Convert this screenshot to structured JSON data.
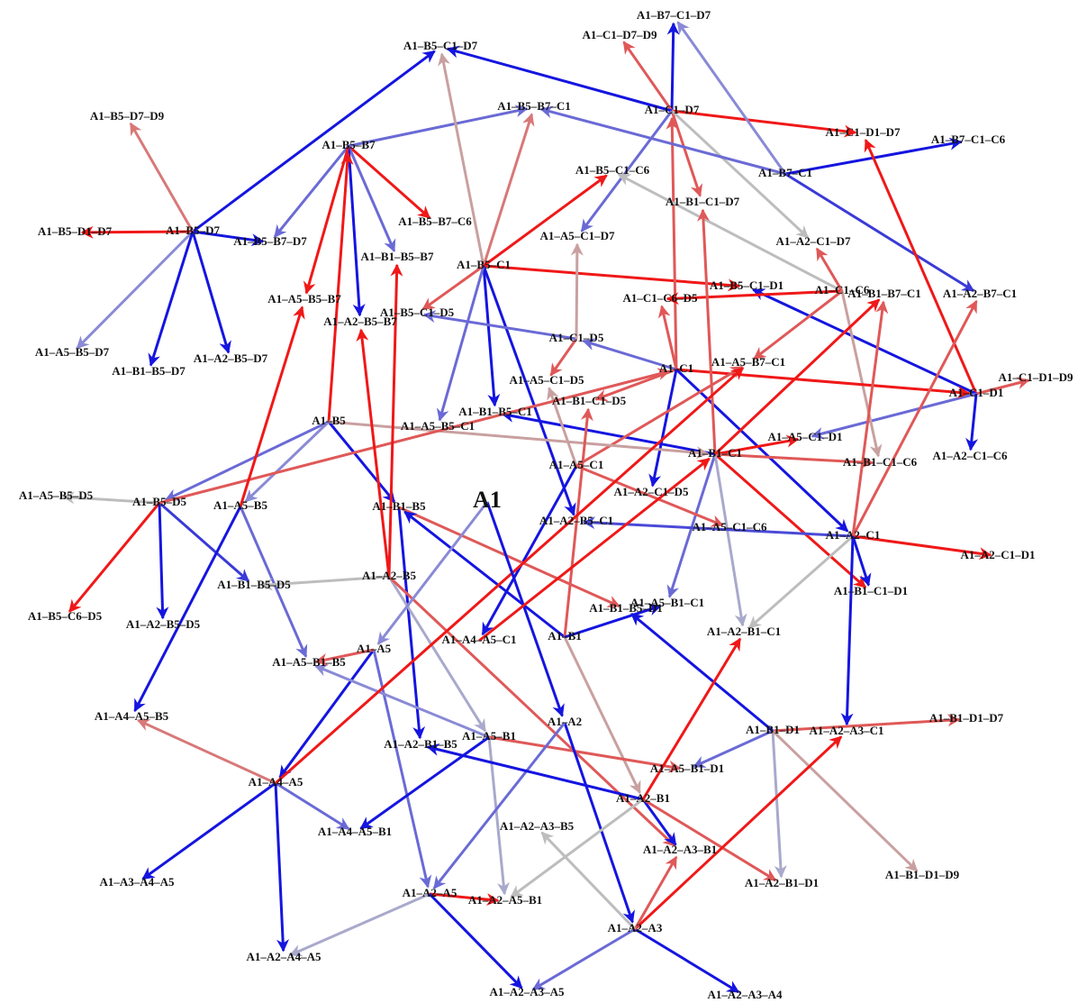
{
  "nodes": [
    "A1",
    "A1–B7–C1–D7",
    "A1–C1–D7–D9",
    "A1–B5–C1–D7",
    "A1–B5–B7–C1",
    "A1–C1–D7",
    "A1–B5–D7–D9",
    "A1–C1–D1–D7",
    "A1–B7–C1–C6",
    "A1–B5–B7",
    "A1–B7–C1",
    "A1–B5–C1–C6",
    "A1–B1–C1–D7",
    "A1–B5–B7–C6",
    "A1–B5–D1–D7",
    "A1–B5–D7",
    "A1–B5–B7–D7",
    "A1–A5–C1–D7",
    "A1–A2–C1–D7",
    "A1–B1–B5–B7",
    "A1–B5–C1",
    "A1–B5–C1–D1",
    "A1–C1–C6",
    "A1–B1–B7–C1",
    "A1–A2–B7–C1",
    "A1–A5–B5–B7",
    "A1–C1–C6–D5",
    "A1–B5–C1–D5",
    "A1–A2–B5–B7",
    "A1–C1–D5",
    "A1–A5–B5–D7",
    "A1–A2–B5–D7",
    "A1–C1",
    "A1–A5–B7–C1",
    "A1–B1–B5–D7",
    "A1–A5–C1–D5",
    "A1–C1–D1–D9",
    "A1–C1–D1",
    "A1–B1–C1–D5",
    "A1–B1–B5–C1",
    "A1–B5",
    "A1–A5–B5–C1",
    "A1–A5–C1–D1",
    "A1–B1–C1",
    "A1–B1–C1–C6",
    "A1–A2–C1–C6",
    "A1–A5–C1",
    "A1–A5–B5–D5",
    "A1–B5–D5",
    "A1–A5–B5",
    "A1–B1–B5",
    "A1–A2–C1–D5",
    "A1–A2–B5–C1",
    "A1–A5–C1–C6",
    "A1–A2–C1",
    "A1–A2–C1–D1",
    "A1–A2–B5",
    "A1–B1–B5–D5",
    "A1–B1–C1–D1",
    "A1–A5–B1–C1",
    "A1–B1–B5–D1",
    "A1–B5–C6–D5",
    "A1–A2–B5–D5",
    "A1–A2–B1–C1",
    "A1–B1",
    "A1–A4–A5–C1",
    "A1–A5",
    "A1–A5–B1–B5",
    "A1–A4–A5–B5",
    "A1–A2",
    "A1–B1–D1",
    "A1–A2–A3–C1",
    "A1–B1–D1–D7",
    "A1–A5–B1",
    "A1–A2–B1–B5",
    "A1–A5–B1–D1",
    "A1–A4–A5",
    "A1–A2–B1",
    "A1–A4–A5–B1",
    "A1–A2–A3–B5",
    "A1–A2–A3–B1",
    "A1–B1–D1–D9",
    "A1–A3–A4–A5",
    "A1–A2–B1–D1",
    "A1–A2–A5",
    "A1–A2–A5–B1",
    "A1–A2–A3",
    "A1–A2–A4–A5",
    "A1–A2–A3–A5",
    "A1–A2–A3–A4"
  ],
  "edges": [
    {
      "from": 15,
      "to": 3,
      "color": "#1515e0"
    },
    {
      "from": 15,
      "to": 14,
      "color": "#f01818"
    },
    {
      "from": 15,
      "to": 16,
      "color": "#1515e0"
    },
    {
      "from": 15,
      "to": 30,
      "color": "#8a8ad6"
    },
    {
      "from": 15,
      "to": 34,
      "color": "#1515e0"
    },
    {
      "from": 15,
      "to": 31,
      "color": "#1515e0"
    },
    {
      "from": 15,
      "to": 6,
      "color": "#d87878"
    },
    {
      "from": 9,
      "to": 16,
      "color": "#6a6ad6"
    },
    {
      "from": 9,
      "to": 13,
      "color": "#f01818"
    },
    {
      "from": 9,
      "to": 19,
      "color": "#6a6ad6"
    },
    {
      "from": 9,
      "to": 28,
      "color": "#1515e0"
    },
    {
      "from": 9,
      "to": 25,
      "color": "#f01818"
    },
    {
      "from": 9,
      "to": 4,
      "color": "#6a6ad6"
    },
    {
      "from": 40,
      "to": 9,
      "color": "#f01818"
    },
    {
      "from": 20,
      "to": 3,
      "color": "#c9a0a0"
    },
    {
      "from": 20,
      "to": 4,
      "color": "#d87878"
    },
    {
      "from": 20,
      "to": 11,
      "color": "#f01818"
    },
    {
      "from": 20,
      "to": 21,
      "color": "#f01818"
    },
    {
      "from": 20,
      "to": 27,
      "color": "#e05858"
    },
    {
      "from": 20,
      "to": 39,
      "color": "#1515e0"
    },
    {
      "from": 20,
      "to": 52,
      "color": "#1515e0"
    },
    {
      "from": 20,
      "to": 41,
      "color": "#6a6ad6"
    },
    {
      "from": 5,
      "to": 1,
      "color": "#1515e0"
    },
    {
      "from": 5,
      "to": 2,
      "color": "#e05858"
    },
    {
      "from": 5,
      "to": 3,
      "color": "#1515e0"
    },
    {
      "from": 5,
      "to": 7,
      "color": "#f01818"
    },
    {
      "from": 5,
      "to": 12,
      "color": "#e05858"
    },
    {
      "from": 5,
      "to": 17,
      "color": "#6a6ad6"
    },
    {
      "from": 5,
      "to": 18,
      "color": "#bdbdbd"
    },
    {
      "from": 32,
      "to": 5,
      "color": "#e05858"
    },
    {
      "from": 10,
      "to": 8,
      "color": "#1515e0"
    },
    {
      "from": 10,
      "to": 1,
      "color": "#8a8ad6"
    },
    {
      "from": 10,
      "to": 24,
      "color": "#3a3ad8"
    },
    {
      "from": 10,
      "to": 4,
      "color": "#6a6ad6"
    },
    {
      "from": 37,
      "to": 7,
      "color": "#f01818"
    },
    {
      "from": 37,
      "to": 36,
      "color": "#e05858"
    },
    {
      "from": 37,
      "to": 21,
      "color": "#1515e0"
    },
    {
      "from": 37,
      "to": 42,
      "color": "#6a6ad6"
    },
    {
      "from": 54,
      "to": 55,
      "color": "#f01818"
    },
    {
      "from": 22,
      "to": 11,
      "color": "#bdbdbd"
    },
    {
      "from": 22,
      "to": 26,
      "color": "#f01818"
    },
    {
      "from": 22,
      "to": 33,
      "color": "#e05858"
    },
    {
      "from": 22,
      "to": 44,
      "color": "#c9a0a0"
    },
    {
      "from": 22,
      "to": 18,
      "color": "#e05858"
    },
    {
      "from": 32,
      "to": 26,
      "color": "#e05858"
    },
    {
      "from": 32,
      "to": 29,
      "color": "#6a6ad6"
    },
    {
      "from": 32,
      "to": 37,
      "color": "#f01818"
    },
    {
      "from": 32,
      "to": 38,
      "color": "#e05858"
    },
    {
      "from": 32,
      "to": 51,
      "color": "#1515e0"
    },
    {
      "from": 32,
      "to": 54,
      "color": "#1515e0"
    },
    {
      "from": 29,
      "to": 35,
      "color": "#e05858"
    },
    {
      "from": 29,
      "to": 27,
      "color": "#6a6ad6"
    },
    {
      "from": 29,
      "to": 17,
      "color": "#c9a0a0"
    },
    {
      "from": 43,
      "to": 39,
      "color": "#1515e0"
    },
    {
      "from": 43,
      "to": 42,
      "color": "#f01818"
    },
    {
      "from": 43,
      "to": 12,
      "color": "#e05858"
    },
    {
      "from": 43,
      "to": 58,
      "color": "#f01818"
    },
    {
      "from": 43,
      "to": 59,
      "color": "#6a6ad6"
    },
    {
      "from": 43,
      "to": 44,
      "color": "#e05858"
    },
    {
      "from": 43,
      "to": 23,
      "color": "#f01818"
    },
    {
      "from": 43,
      "to": 63,
      "color": "#a9a9cc"
    },
    {
      "from": 46,
      "to": 35,
      "color": "#c9a0a0"
    },
    {
      "from": 46,
      "to": 65,
      "color": "#1515e0"
    },
    {
      "from": 46,
      "to": 53,
      "color": "#e05858"
    },
    {
      "from": 46,
      "to": 33,
      "color": "#e05858"
    },
    {
      "from": 54,
      "to": 52,
      "color": "#4a4ad8"
    },
    {
      "from": 37,
      "to": 45,
      "color": "#1515e0"
    },
    {
      "from": 54,
      "to": 63,
      "color": "#bdbdbd"
    },
    {
      "from": 54,
      "to": 71,
      "color": "#1515e0"
    },
    {
      "from": 54,
      "to": 24,
      "color": "#e05858"
    },
    {
      "from": 54,
      "to": 23,
      "color": "#e05858"
    },
    {
      "from": 40,
      "to": 48,
      "color": "#6a6ad6"
    },
    {
      "from": 40,
      "to": 50,
      "color": "#1515e0"
    },
    {
      "from": 40,
      "to": 49,
      "color": "#8a8ad6"
    },
    {
      "from": 40,
      "to": 43,
      "color": "#c9a0a0"
    },
    {
      "from": 48,
      "to": 47,
      "color": "#bdbdbd"
    },
    {
      "from": 48,
      "to": 61,
      "color": "#f01818"
    },
    {
      "from": 48,
      "to": 62,
      "color": "#1515e0"
    },
    {
      "from": 48,
      "to": 57,
      "color": "#3a3ad8"
    },
    {
      "from": 48,
      "to": 32,
      "color": "#e05858"
    },
    {
      "from": 49,
      "to": 67,
      "color": "#6a6ad6"
    },
    {
      "from": 49,
      "to": 68,
      "color": "#1515e0"
    },
    {
      "from": 49,
      "to": 25,
      "color": "#f01818"
    },
    {
      "from": 50,
      "to": 74,
      "color": "#1515e0"
    },
    {
      "from": 50,
      "to": 60,
      "color": "#e05858"
    },
    {
      "from": 56,
      "to": 28,
      "color": "#f01818"
    },
    {
      "from": 56,
      "to": 19,
      "color": "#f01818"
    },
    {
      "from": 56,
      "to": 57,
      "color": "#bdbdbd"
    },
    {
      "from": 56,
      "to": 73,
      "color": "#a9a9cc"
    },
    {
      "from": 56,
      "to": 80,
      "color": "#e05858"
    },
    {
      "from": 64,
      "to": 50,
      "color": "#1515e0"
    },
    {
      "from": 64,
      "to": 38,
      "color": "#e05858"
    },
    {
      "from": 64,
      "to": 77,
      "color": "#c9a0a0"
    },
    {
      "from": 66,
      "to": 76,
      "color": "#1515e0"
    },
    {
      "from": 66,
      "to": 84,
      "color": "#6a6ad6"
    },
    {
      "from": 73,
      "to": 67,
      "color": "#8a8ad6"
    },
    {
      "from": 73,
      "to": 78,
      "color": "#1515e0"
    },
    {
      "from": 73,
      "to": 75,
      "color": "#e05858"
    },
    {
      "from": 73,
      "to": 85,
      "color": "#a9a9cc"
    },
    {
      "from": 69,
      "to": 86,
      "color": "#1515e0"
    },
    {
      "from": 69,
      "to": 84,
      "color": "#6a6ad6"
    },
    {
      "from": 70,
      "to": 72,
      "color": "#e05858"
    },
    {
      "from": 70,
      "to": 75,
      "color": "#6a6ad6"
    },
    {
      "from": 70,
      "to": 83,
      "color": "#a9a9cc"
    },
    {
      "from": 70,
      "to": 81,
      "color": "#c9a0a0"
    },
    {
      "from": 70,
      "to": 60,
      "color": "#1515e0"
    },
    {
      "from": 76,
      "to": 78,
      "color": "#6a6ad6"
    },
    {
      "from": 76,
      "to": 82,
      "color": "#1515e0"
    },
    {
      "from": 76,
      "to": 87,
      "color": "#1515e0"
    },
    {
      "from": 76,
      "to": 33,
      "color": "#f01818"
    },
    {
      "from": 76,
      "to": 68,
      "color": "#d87878"
    },
    {
      "from": 77,
      "to": 74,
      "color": "#1515e0"
    },
    {
      "from": 77,
      "to": 80,
      "color": "#1515e0"
    },
    {
      "from": 77,
      "to": 83,
      "color": "#e05858"
    },
    {
      "from": 77,
      "to": 85,
      "color": "#bdbdbd"
    },
    {
      "from": 77,
      "to": 63,
      "color": "#f01818"
    },
    {
      "from": 84,
      "to": 85,
      "color": "#f01818"
    },
    {
      "from": 84,
      "to": 87,
      "color": "#a9a9cc"
    },
    {
      "from": 84,
      "to": 88,
      "color": "#1515e0"
    },
    {
      "from": 86,
      "to": 89,
      "color": "#1515e0"
    },
    {
      "from": 86,
      "to": 88,
      "color": "#6a6ad6"
    },
    {
      "from": 86,
      "to": 71,
      "color": "#f01818"
    },
    {
      "from": 86,
      "to": 80,
      "color": "#e05858"
    },
    {
      "from": 86,
      "to": 79,
      "color": "#bdbdbd"
    },
    {
      "from": 54,
      "to": 58,
      "color": "#1515e0"
    },
    {
      "from": 0,
      "to": 69,
      "color": "#1515e0"
    },
    {
      "from": 0,
      "to": 66,
      "color": "#8a8ad6"
    },
    {
      "from": 65,
      "to": 43,
      "color": "#f01818"
    },
    {
      "from": 66,
      "to": 67,
      "color": "#e05858"
    },
    {
      "from": 64,
      "to": 59,
      "color": "#1515e0"
    }
  ]
}
